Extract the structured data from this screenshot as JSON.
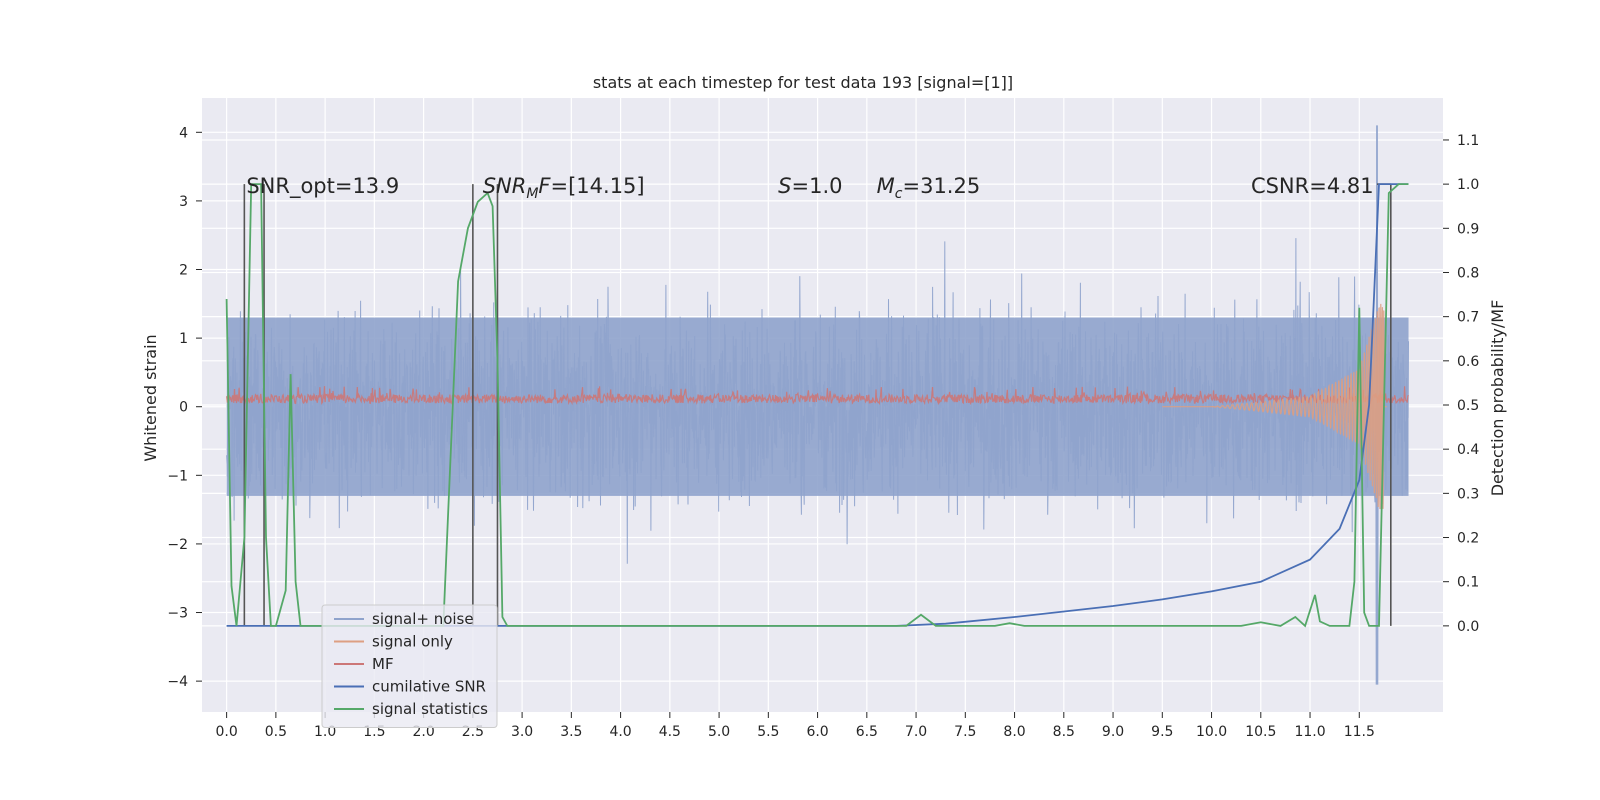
{
  "chart_data": {
    "type": "line",
    "title": "stats at each timestep for test data 193 [signal=[1]]",
    "ylabel_left": "Whitened strain",
    "ylabel_right": "Detection probability/MF",
    "xlim": [
      -0.25,
      12.35
    ],
    "ylim_left": [
      -4.45,
      4.5
    ],
    "ylim_right": [
      -0.195,
      1.195
    ],
    "grid": true,
    "x_ticks": [
      0.0,
      0.5,
      1.0,
      1.5,
      2.0,
      2.5,
      3.0,
      3.5,
      4.0,
      4.5,
      5.0,
      5.5,
      6.0,
      6.5,
      7.0,
      7.5,
      8.0,
      8.5,
      9.0,
      9.5,
      10.0,
      10.5,
      11.0,
      11.5
    ],
    "x_tick_labels": [
      "0.0",
      "0.5",
      "1.0",
      "1.5",
      "2.0",
      "2.5",
      "3.0",
      "3.5",
      "4.0",
      "4.5",
      "5.0",
      "5.5",
      "6.0",
      "6.5",
      "7.0",
      "7.5",
      "8.0",
      "8.5",
      "9.0",
      "9.5",
      "10.0",
      "10.5",
      "11.0",
      "11.5"
    ],
    "y_left_ticks": [
      -4,
      -3,
      -2,
      -1,
      0,
      1,
      2,
      3,
      4
    ],
    "y_left_tick_labels": [
      "−4",
      "−3",
      "−2",
      "−1",
      "0",
      "1",
      "2",
      "3",
      "4"
    ],
    "y_right_ticks": [
      0.0,
      0.1,
      0.2,
      0.3,
      0.4,
      0.5,
      0.6,
      0.7,
      0.8,
      0.9,
      1.0,
      1.1
    ],
    "y_right_tick_labels": [
      "0.0",
      "0.1",
      "0.2",
      "0.3",
      "0.4",
      "0.5",
      "0.6",
      "0.7",
      "0.8",
      "0.9",
      "1.0",
      "1.1"
    ],
    "annotations": [
      {
        "id": "snr-opt",
        "text": "SNR_opt=13.9",
        "x": 0.2,
        "y": 3.2
      },
      {
        "id": "snr-mf",
        "text": "SNRₘF=[14.15]",
        "x": 2.6,
        "y": 3.2
      },
      {
        "id": "s",
        "text": "S=1.0",
        "x": 5.6,
        "y": 3.2
      },
      {
        "id": "mc",
        "text": "Mc=31.25",
        "x": 6.6,
        "y": 3.2
      },
      {
        "id": "csnr",
        "text": "CSNR=4.81",
        "x": 10.4,
        "y": 3.2
      }
    ],
    "legend": {
      "placement": "lower-left",
      "entries": [
        {
          "name": "signal+ noise",
          "color": "#8fa3cc"
        },
        {
          "name": "signal only",
          "color": "#dd9f82"
        },
        {
          "name": "MF",
          "color": "#cc7777"
        },
        {
          "name": "cumilative SNR",
          "color": "#4a6fb5"
        },
        {
          "name": "signal statistics",
          "color": "#55a868"
        }
      ]
    },
    "series": [
      {
        "name": "signal+ noise",
        "axis": "left",
        "color": "#8fa3cc",
        "x_range": [
          0.0,
          12.0
        ],
        "envelope": [
          -2.6,
          2.6
        ],
        "band": [
          -1.3,
          1.3
        ]
      },
      {
        "name": "signal only",
        "axis": "left",
        "color": "#dd9f82",
        "x_range": [
          0.0,
          12.0
        ],
        "amplitude": [
          [
            10.0,
            0.0
          ],
          [
            10.5,
            0.07
          ],
          [
            11.0,
            0.15
          ],
          [
            11.5,
            0.55
          ],
          [
            11.7,
            1.5
          ]
        ]
      },
      {
        "name": "MF",
        "axis": "left",
        "color": "#cc7777",
        "x_range": [
          0.0,
          12.0
        ],
        "band": [
          0.05,
          0.18
        ]
      },
      {
        "name": "cumilative SNR",
        "axis": "right",
        "color": "#4a6fb5",
        "x": [
          0.0,
          6.8,
          7.3,
          8.0,
          9.0,
          9.5,
          10.0,
          10.5,
          11.0,
          11.3,
          11.5,
          11.6,
          11.65,
          11.7,
          12.0
        ],
        "y": [
          0.0,
          0.0,
          0.005,
          0.02,
          0.045,
          0.06,
          0.078,
          0.1,
          0.15,
          0.22,
          0.33,
          0.5,
          0.75,
          1.0,
          1.0
        ]
      },
      {
        "name": "signal statistics",
        "axis": "right",
        "color": "#55a868",
        "x": [
          0.0,
          0.05,
          0.1,
          0.18,
          0.25,
          0.3,
          0.35,
          0.4,
          0.45,
          0.5,
          0.6,
          0.65,
          0.7,
          0.75,
          0.8,
          1.0,
          2.2,
          2.35,
          2.45,
          2.55,
          2.65,
          2.7,
          2.75,
          2.8,
          2.85,
          3.0,
          6.9,
          7.05,
          7.2,
          7.8,
          7.95,
          8.1,
          10.3,
          10.5,
          10.7,
          10.85,
          10.95,
          11.05,
          11.1,
          11.2,
          11.4,
          11.45,
          11.5,
          11.55,
          11.6,
          11.7,
          11.8,
          11.9,
          12.0
        ],
        "y": [
          0.74,
          0.09,
          0.0,
          0.2,
          1.0,
          1.0,
          1.0,
          0.2,
          0.0,
          0.0,
          0.08,
          0.57,
          0.1,
          0.0,
          0.0,
          0.0,
          0.0,
          0.78,
          0.9,
          0.96,
          0.98,
          0.95,
          0.6,
          0.02,
          0.0,
          0.0,
          0.0,
          0.025,
          0.0,
          0.0,
          0.006,
          0.0,
          0.0,
          0.008,
          0.0,
          0.02,
          0.0,
          0.07,
          0.01,
          0.0,
          0.0,
          0.1,
          0.72,
          0.03,
          0.0,
          0.0,
          0.98,
          1.0,
          1.0
        ]
      },
      {
        "name": "detection markers",
        "axis": "right",
        "color": "#555555",
        "x": [
          0.18,
          0.38,
          2.5,
          2.75,
          11.82
        ],
        "y": [
          1.0,
          1.0,
          1.0,
          1.0,
          1.0
        ]
      }
    ]
  }
}
